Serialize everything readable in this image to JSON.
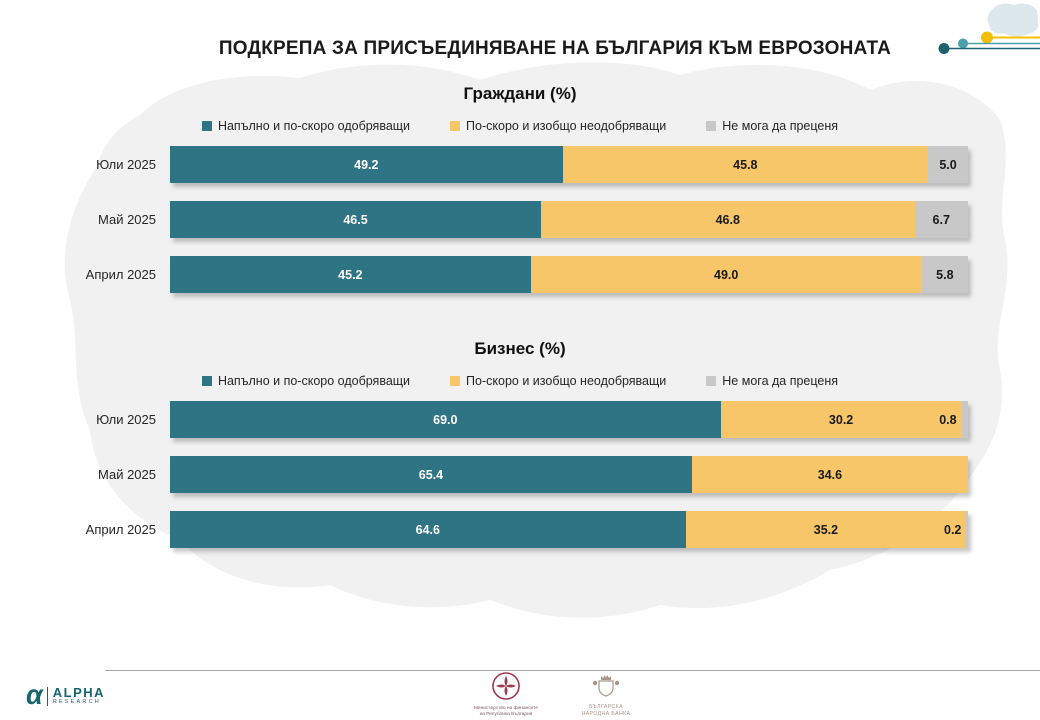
{
  "page": {
    "title": "ПОДКРЕПА ЗА ПРИСЪЕДИНЯВАНЕ НА БЪЛГАРИЯ КЪМ ЕВРОЗОНАТА"
  },
  "colors": {
    "approve_teal": "#2e7485",
    "disapprove_yellow": "#f7c668",
    "undecided_gray": "#c8c8c8",
    "watermark_gray": "#ececec",
    "deco_yellow": "#f3c000",
    "deco_mid_teal": "#4aa0ac",
    "deco_dark_teal": "#20616f",
    "footer_rule_gray": "#a6a6a6",
    "alpha_teal": "#16656d",
    "ministry_maroon": "#9e3a50",
    "bank_sepia": "#a8948a"
  },
  "legend": [
    {
      "label": "Напълно и по-скоро одобряващи",
      "color": "#2e7485"
    },
    {
      "label": "По-скоро и изобщо неодобряващи",
      "color": "#f7c668"
    },
    {
      "label": "Не мога да преценя",
      "color": "#c8c8c8"
    }
  ],
  "chart_data": [
    {
      "type": "bar",
      "stacked": true,
      "orientation": "horizontal",
      "title": "Граждани (%)",
      "categories": [
        "Юли 2025",
        "Май 2025",
        "Април 2025"
      ],
      "xlim": [
        0,
        100
      ],
      "grid": false,
      "legend_position": "top",
      "series": [
        {
          "name": "Напълно и по-скоро одобряващи",
          "color": "#2e7485",
          "label_color": "#ffffff",
          "values": [
            49.2,
            46.5,
            45.2
          ],
          "labels": [
            "49.2",
            "46.5",
            "45.2"
          ]
        },
        {
          "name": "По-скоро и изобщо неодобряващи",
          "color": "#f7c668",
          "label_color": "#1a1a1a",
          "values": [
            45.8,
            46.8,
            49.0
          ],
          "labels": [
            "45.8",
            "46.8",
            "49.0"
          ]
        },
        {
          "name": "Не мога да преценя",
          "color": "#c8c8c8",
          "label_color": "#1a1a1a",
          "values": [
            5.0,
            6.7,
            5.8
          ],
          "labels": [
            "5.0",
            "6.7",
            "5.8"
          ]
        }
      ]
    },
    {
      "type": "bar",
      "stacked": true,
      "orientation": "horizontal",
      "title": "Бизнес (%)",
      "categories": [
        "Юли 2025",
        "Май 2025",
        "Април 2025"
      ],
      "xlim": [
        0,
        100
      ],
      "grid": false,
      "legend_position": "top",
      "series": [
        {
          "name": "Напълно и по-скоро одобряващи",
          "color": "#2e7485",
          "label_color": "#ffffff",
          "values": [
            69.0,
            65.4,
            64.6
          ],
          "labels": [
            "69.0",
            "65.4",
            "64.6"
          ]
        },
        {
          "name": "По-скоро и изобщо неодобряващи",
          "color": "#f7c668",
          "label_color": "#1a1a1a",
          "values": [
            30.2,
            34.6,
            35.2
          ],
          "labels": [
            "30.2",
            "34.6",
            "35.2"
          ]
        },
        {
          "name": "Не мога да преценя",
          "color": "#c8c8c8",
          "label_color": "#1a1a1a",
          "values": [
            0.8,
            0.0,
            0.2
          ],
          "labels": [
            "0.8",
            "",
            "0.2"
          ]
        }
      ]
    }
  ],
  "footer": {
    "alpha": {
      "name": "ALPHA",
      "sub": "RESEARCH",
      "glyph": "α"
    },
    "ministry": {
      "line1": "Министерство на финансите",
      "line2": "на Република България"
    },
    "bank": {
      "line1": "БЪЛГАРСКА",
      "line2": "НАРОДНА БАНКА"
    }
  }
}
